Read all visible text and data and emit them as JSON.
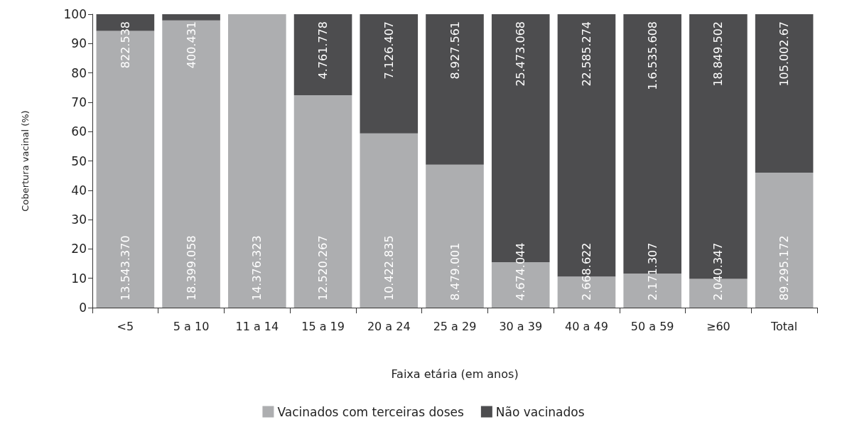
{
  "chart_data": {
    "type": "bar",
    "stacked": true,
    "xlabel": "Faixa etária (em anos)",
    "ylabel": "Cobertura vacinal (%)",
    "categories": [
      "<5",
      "5 a 10",
      "11 a 14",
      "15 a 19",
      "20 a 24",
      "25 a 29",
      "30 a 39",
      "40 a 49",
      "50 a 59",
      "≥60",
      "Total"
    ],
    "series": [
      {
        "name": "Vacinados com terceiras doses",
        "color": "#adaeb0",
        "values": [
          94.3,
          97.9,
          100,
          72.4,
          59.4,
          48.7,
          15.5,
          10.6,
          11.6,
          9.8,
          46.0
        ]
      },
      {
        "name": "Não vacinados",
        "color": "#4d4d4f",
        "values": [
          5.7,
          2.1,
          0,
          27.6,
          40.6,
          51.3,
          84.5,
          89.4,
          88.4,
          90.2,
          54.0
        ]
      }
    ],
    "annotations": [
      "822.538",
      "13.543.370",
      "400.431",
      "18.399.058",
      "14.376.323",
      "4.761.778",
      "12.520.267",
      "7.126.407",
      "10.422.835",
      "8.927.561",
      "8.479.001",
      "25.473.068",
      "4.674.044",
      "22.585.274",
      "2.668.622",
      "1.6.535.608",
      "2.171.307",
      "18.849.502",
      "2.040.347",
      "105.002.67",
      "89.295.172"
    ],
    "ylim": [
      0,
      100
    ],
    "yticks": [
      0,
      10,
      20,
      30,
      40,
      50,
      60,
      70,
      80,
      90,
      100
    ],
    "grid": false,
    "legend": "bottom"
  }
}
